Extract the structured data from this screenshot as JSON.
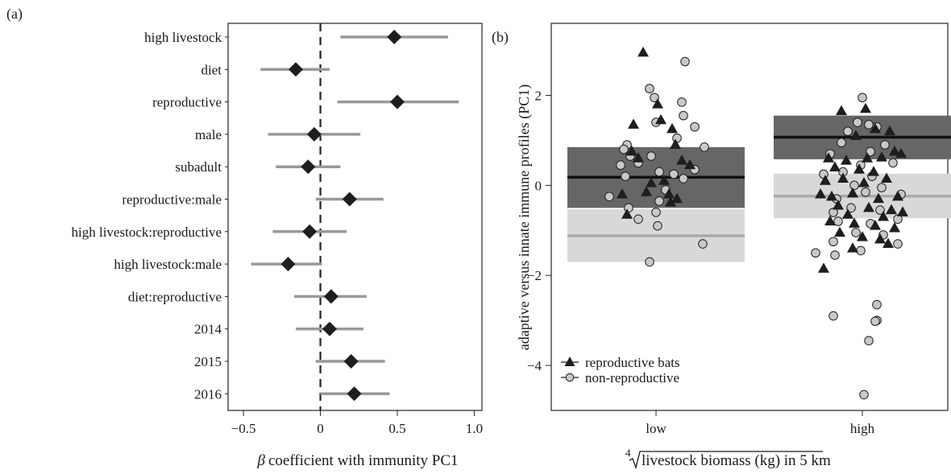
{
  "colors": {
    "ci_line": "#999999",
    "marker": "#1e1e1e",
    "axis": "#222222",
    "band_reproductive": "#666666",
    "band_nonreproductive": "#d8d8d8",
    "mean_reproductive": "#111111",
    "mean_nonreproductive": "#aaaaaa",
    "point_nonreproductive_fill": "#c8c8c8"
  },
  "chart_data": [
    {
      "panel_label": "(a)",
      "type": "scatter",
      "subtype": "coefficient-plot",
      "xlabel_prefix": "β",
      "xlabel": "coefficient with immunity PC1",
      "xlim": [
        -0.6,
        1.05
      ],
      "xticks": [
        -0.5,
        0.0,
        0.5,
        1.0
      ],
      "xtick_labels": [
        "−0.5",
        "0",
        "0.5",
        "1.0"
      ],
      "reference_line": 0,
      "categories": [
        "high livestock",
        "diet",
        "reproductive",
        "male",
        "subadult",
        "reproductive:male",
        "high livestock:reproductive",
        "high livestock:male",
        "diet:reproductive",
        "2014",
        "2015",
        "2016"
      ],
      "estimate": [
        0.48,
        -0.16,
        0.5,
        -0.04,
        -0.08,
        0.19,
        -0.07,
        -0.21,
        0.07,
        0.06,
        0.2,
        0.22
      ],
      "ci_low": [
        0.13,
        -0.39,
        0.11,
        -0.34,
        -0.29,
        -0.03,
        -0.31,
        -0.45,
        -0.17,
        -0.16,
        -0.03,
        0.0
      ],
      "ci_high": [
        0.83,
        0.06,
        0.9,
        0.26,
        0.13,
        0.41,
        0.17,
        0.01,
        0.3,
        0.28,
        0.42,
        0.45
      ]
    },
    {
      "panel_label": "(b)",
      "type": "scatter",
      "ylabel": "adaptive versus innate immune profiles (PC1)",
      "xlabel_root": "4",
      "xlabel": "livestock biomass (kg) in 5 km",
      "categories": [
        "low",
        "high"
      ],
      "ylim": [
        -5.0,
        3.6
      ],
      "yticks": [
        -4,
        -2,
        0,
        2
      ],
      "legend": {
        "position": "bottom-left",
        "entries": [
          "reproductive bats",
          "non-reproductive"
        ]
      },
      "summary": [
        {
          "category": "low",
          "group": "reproductive",
          "mean": 0.18,
          "lower": -0.5,
          "upper": 0.85
        },
        {
          "category": "low",
          "group": "non-reproductive",
          "mean": -1.12,
          "lower": -1.7,
          "upper": -0.53
        },
        {
          "category": "high",
          "group": "reproductive",
          "mean": 1.07,
          "lower": 0.58,
          "upper": 1.55
        },
        {
          "category": "high",
          "group": "non-reproductive",
          "mean": -0.24,
          "lower": -0.73,
          "upper": 0.26
        }
      ],
      "series": [
        {
          "name": "reproductive bats",
          "marker": "triangle",
          "points": [
            {
              "x": "low",
              "offset": -0.08,
              "y": 2.95
            },
            {
              "x": "low",
              "offset": 0.01,
              "y": 1.8
            },
            {
              "x": "low",
              "offset": -0.14,
              "y": 1.35
            },
            {
              "x": "low",
              "offset": 0.03,
              "y": 1.45
            },
            {
              "x": "low",
              "offset": 0.1,
              "y": 1.25
            },
            {
              "x": "low",
              "offset": -0.15,
              "y": 0.75
            },
            {
              "x": "low",
              "offset": 0.12,
              "y": 0.9
            },
            {
              "x": "low",
              "offset": 0.16,
              "y": 0.55
            },
            {
              "x": "low",
              "offset": 0.21,
              "y": 0.45
            },
            {
              "x": "low",
              "offset": -0.11,
              "y": 0.6
            },
            {
              "x": "low",
              "offset": 0.05,
              "y": 0.1
            },
            {
              "x": "low",
              "offset": -0.03,
              "y": 0.05
            },
            {
              "x": "low",
              "offset": 0.08,
              "y": -0.2
            },
            {
              "x": "low",
              "offset": -0.06,
              "y": -0.15
            },
            {
              "x": "low",
              "offset": 0.13,
              "y": -0.3
            },
            {
              "x": "low",
              "offset": 0.09,
              "y": -0.38
            },
            {
              "x": "low",
              "offset": -0.18,
              "y": -0.65
            },
            {
              "x": "low",
              "offset": -0.21,
              "y": -0.2
            },
            {
              "x": "high",
              "offset": -0.13,
              "y": 1.65
            },
            {
              "x": "high",
              "offset": 0.02,
              "y": 1.7
            },
            {
              "x": "high",
              "offset": 0.08,
              "y": 1.25
            },
            {
              "x": "high",
              "offset": 0.17,
              "y": 1.2
            },
            {
              "x": "high",
              "offset": -0.04,
              "y": 1.1
            },
            {
              "x": "high",
              "offset": -0.21,
              "y": 0.6
            },
            {
              "x": "high",
              "offset": -0.1,
              "y": 0.55
            },
            {
              "x": "high",
              "offset": 0.2,
              "y": 0.75
            },
            {
              "x": "high",
              "offset": 0.24,
              "y": 0.7
            },
            {
              "x": "high",
              "offset": 0.12,
              "y": 0.62
            },
            {
              "x": "high",
              "offset": 0.03,
              "y": 0.6
            },
            {
              "x": "high",
              "offset": -0.17,
              "y": 0.4
            },
            {
              "x": "high",
              "offset": -0.02,
              "y": 0.35
            },
            {
              "x": "high",
              "offset": 0.07,
              "y": 0.3
            },
            {
              "x": "high",
              "offset": -0.23,
              "y": 0.1
            },
            {
              "x": "high",
              "offset": -0.12,
              "y": 0.15
            },
            {
              "x": "high",
              "offset": 0.01,
              "y": 0.05
            },
            {
              "x": "high",
              "offset": 0.15,
              "y": 0.15
            },
            {
              "x": "high",
              "offset": -0.26,
              "y": -0.2
            },
            {
              "x": "high",
              "offset": -0.19,
              "y": -0.25
            },
            {
              "x": "high",
              "offset": -0.06,
              "y": -0.18
            },
            {
              "x": "high",
              "offset": 0.1,
              "y": -0.3
            },
            {
              "x": "high",
              "offset": 0.22,
              "y": -0.25
            },
            {
              "x": "high",
              "offset": -0.15,
              "y": -0.45
            },
            {
              "x": "high",
              "offset": 0.04,
              "y": -0.5
            },
            {
              "x": "high",
              "offset": 0.18,
              "y": -0.55
            },
            {
              "x": "high",
              "offset": -0.09,
              "y": -0.65
            },
            {
              "x": "high",
              "offset": 0.13,
              "y": -0.7
            },
            {
              "x": "high",
              "offset": 0.25,
              "y": -0.6
            },
            {
              "x": "high",
              "offset": -0.2,
              "y": -0.8
            },
            {
              "x": "high",
              "offset": -0.05,
              "y": -0.85
            },
            {
              "x": "high",
              "offset": 0.08,
              "y": -0.9
            },
            {
              "x": "high",
              "offset": 0.2,
              "y": -0.95
            },
            {
              "x": "high",
              "offset": -0.14,
              "y": -1.05
            },
            {
              "x": "high",
              "offset": 0.0,
              "y": -1.15
            },
            {
              "x": "high",
              "offset": 0.11,
              "y": -1.2
            },
            {
              "x": "high",
              "offset": -0.06,
              "y": -1.4
            },
            {
              "x": "high",
              "offset": 0.16,
              "y": -1.3
            },
            {
              "x": "high",
              "offset": -0.24,
              "y": -1.85
            }
          ]
        },
        {
          "name": "non-reproductive",
          "marker": "circle",
          "points": [
            {
              "x": "low",
              "offset": 0.18,
              "y": 2.75
            },
            {
              "x": "low",
              "offset": -0.04,
              "y": 2.15
            },
            {
              "x": "low",
              "offset": -0.01,
              "y": 1.95
            },
            {
              "x": "low",
              "offset": 0.16,
              "y": 1.85
            },
            {
              "x": "low",
              "offset": 0.17,
              "y": 1.55
            },
            {
              "x": "low",
              "offset": 0.0,
              "y": 1.4
            },
            {
              "x": "low",
              "offset": 0.13,
              "y": 1.05
            },
            {
              "x": "low",
              "offset": 0.24,
              "y": 1.3
            },
            {
              "x": "low",
              "offset": -0.18,
              "y": 0.9
            },
            {
              "x": "low",
              "offset": -0.2,
              "y": 0.8
            },
            {
              "x": "low",
              "offset": 0.3,
              "y": 0.85
            },
            {
              "x": "low",
              "offset": -0.16,
              "y": 0.65
            },
            {
              "x": "low",
              "offset": -0.03,
              "y": 0.65
            },
            {
              "x": "low",
              "offset": -0.22,
              "y": 0.45
            },
            {
              "x": "low",
              "offset": -0.11,
              "y": 0.5
            },
            {
              "x": "low",
              "offset": 0.24,
              "y": 0.35
            },
            {
              "x": "low",
              "offset": -0.19,
              "y": 0.2
            },
            {
              "x": "low",
              "offset": 0.02,
              "y": 0.3
            },
            {
              "x": "low",
              "offset": 0.11,
              "y": 0.25
            },
            {
              "x": "low",
              "offset": 0.17,
              "y": 0.15
            },
            {
              "x": "low",
              "offset": 0.06,
              "y": -0.1
            },
            {
              "x": "low",
              "offset": -0.29,
              "y": -0.25
            },
            {
              "x": "low",
              "offset": 0.02,
              "y": -0.35
            },
            {
              "x": "low",
              "offset": -0.17,
              "y": -0.5
            },
            {
              "x": "low",
              "offset": 0.0,
              "y": -0.6
            },
            {
              "x": "low",
              "offset": -0.11,
              "y": -0.75
            },
            {
              "x": "low",
              "offset": 0.01,
              "y": -0.9
            },
            {
              "x": "low",
              "offset": 0.29,
              "y": -1.3
            },
            {
              "x": "low",
              "offset": -0.04,
              "y": -1.7
            },
            {
              "x": "high",
              "offset": 0.0,
              "y": 1.95
            },
            {
              "x": "high",
              "offset": -0.03,
              "y": 1.4
            },
            {
              "x": "high",
              "offset": 0.04,
              "y": 1.35
            },
            {
              "x": "high",
              "offset": 0.09,
              "y": 1.3
            },
            {
              "x": "high",
              "offset": -0.09,
              "y": 1.2
            },
            {
              "x": "high",
              "offset": -0.13,
              "y": 0.95
            },
            {
              "x": "high",
              "offset": 0.14,
              "y": 0.9
            },
            {
              "x": "high",
              "offset": -0.2,
              "y": 0.7
            },
            {
              "x": "high",
              "offset": 0.05,
              "y": 0.75
            },
            {
              "x": "high",
              "offset": -0.01,
              "y": 0.45
            },
            {
              "x": "high",
              "offset": 0.19,
              "y": 0.5
            },
            {
              "x": "high",
              "offset": -0.24,
              "y": 0.25
            },
            {
              "x": "high",
              "offset": -0.12,
              "y": 0.3
            },
            {
              "x": "high",
              "offset": 0.06,
              "y": 0.2
            },
            {
              "x": "high",
              "offset": -0.05,
              "y": 0.0
            },
            {
              "x": "high",
              "offset": 0.12,
              "y": -0.05
            },
            {
              "x": "high",
              "offset": 0.02,
              "y": -0.15
            },
            {
              "x": "high",
              "offset": -0.16,
              "y": -0.3
            },
            {
              "x": "high",
              "offset": 0.24,
              "y": -0.2
            },
            {
              "x": "high",
              "offset": -0.07,
              "y": -0.5
            },
            {
              "x": "high",
              "offset": -0.18,
              "y": -0.6
            },
            {
              "x": "high",
              "offset": 0.11,
              "y": -0.55
            },
            {
              "x": "high",
              "offset": -0.15,
              "y": -0.8
            },
            {
              "x": "high",
              "offset": 0.05,
              "y": -0.85
            },
            {
              "x": "high",
              "offset": 0.22,
              "y": -0.75
            },
            {
              "x": "high",
              "offset": -0.04,
              "y": -1.05
            },
            {
              "x": "high",
              "offset": 0.13,
              "y": -1.1
            },
            {
              "x": "high",
              "offset": -0.18,
              "y": -1.25
            },
            {
              "x": "high",
              "offset": 0.22,
              "y": -1.3
            },
            {
              "x": "high",
              "offset": -0.29,
              "y": -1.5
            },
            {
              "x": "high",
              "offset": -0.01,
              "y": -1.45
            },
            {
              "x": "high",
              "offset": -0.17,
              "y": -1.55
            },
            {
              "x": "high",
              "offset": 0.09,
              "y": -2.65
            },
            {
              "x": "high",
              "offset": -0.18,
              "y": -2.9
            },
            {
              "x": "high",
              "offset": 0.09,
              "y": -3.0
            },
            {
              "x": "high",
              "offset": 0.08,
              "y": -3.02
            },
            {
              "x": "high",
              "offset": 0.04,
              "y": -3.45
            },
            {
              "x": "high",
              "offset": 0.01,
              "y": -4.65
            }
          ]
        }
      ]
    }
  ]
}
